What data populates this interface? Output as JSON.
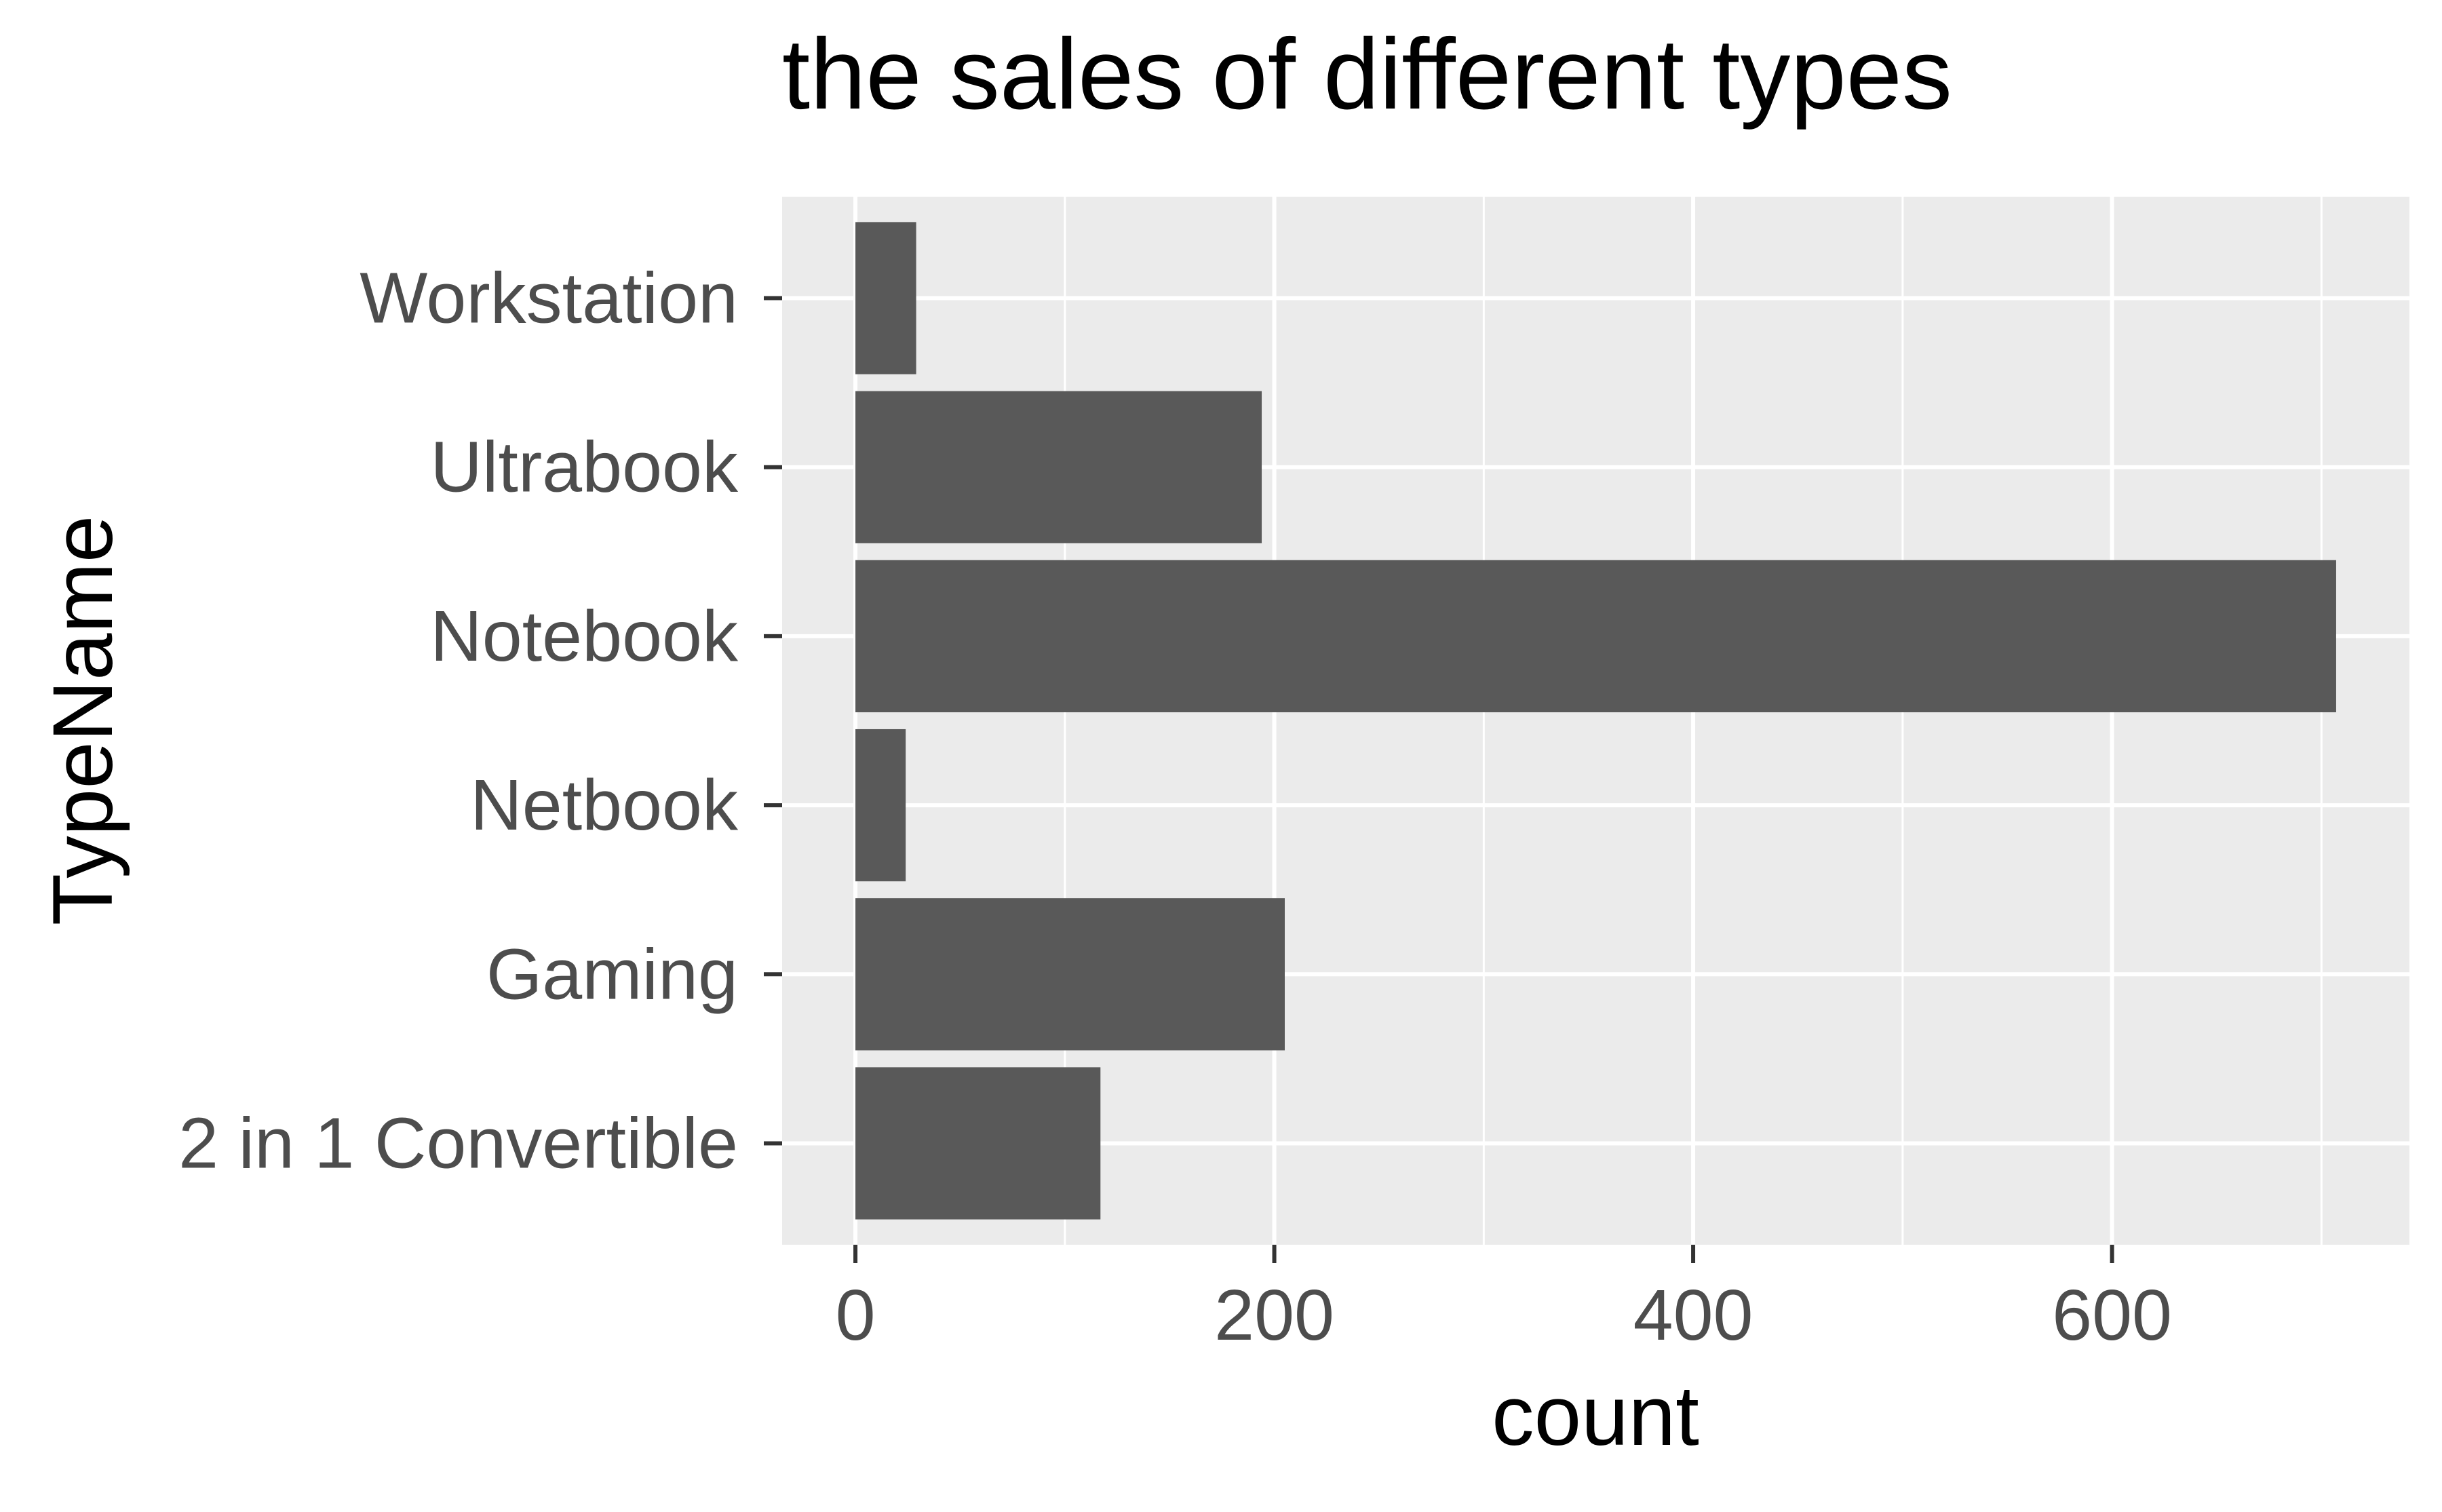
{
  "chart_data": {
    "type": "bar",
    "orientation": "horizontal",
    "title": "the sales of different types",
    "xlabel": "count",
    "ylabel": "TypeName",
    "categories": [
      "2 in 1 Convertible",
      "Gaming",
      "Netbook",
      "Notebook",
      "Ultrabook",
      "Workstation"
    ],
    "values": [
      117,
      205,
      24,
      707,
      194,
      29
    ],
    "xlim": [
      -35,
      742
    ],
    "x_ticks": [
      0,
      200,
      400,
      600
    ],
    "x_tick_labels": [
      "0",
      "200",
      "400",
      "600"
    ],
    "grid": true,
    "legend": "none",
    "colors": {
      "bar": "#595959",
      "panel_background": "#EBEBEB",
      "grid": "#FFFFFF",
      "tick_label": "#4D4D4D",
      "axis_title": "#000000"
    }
  }
}
